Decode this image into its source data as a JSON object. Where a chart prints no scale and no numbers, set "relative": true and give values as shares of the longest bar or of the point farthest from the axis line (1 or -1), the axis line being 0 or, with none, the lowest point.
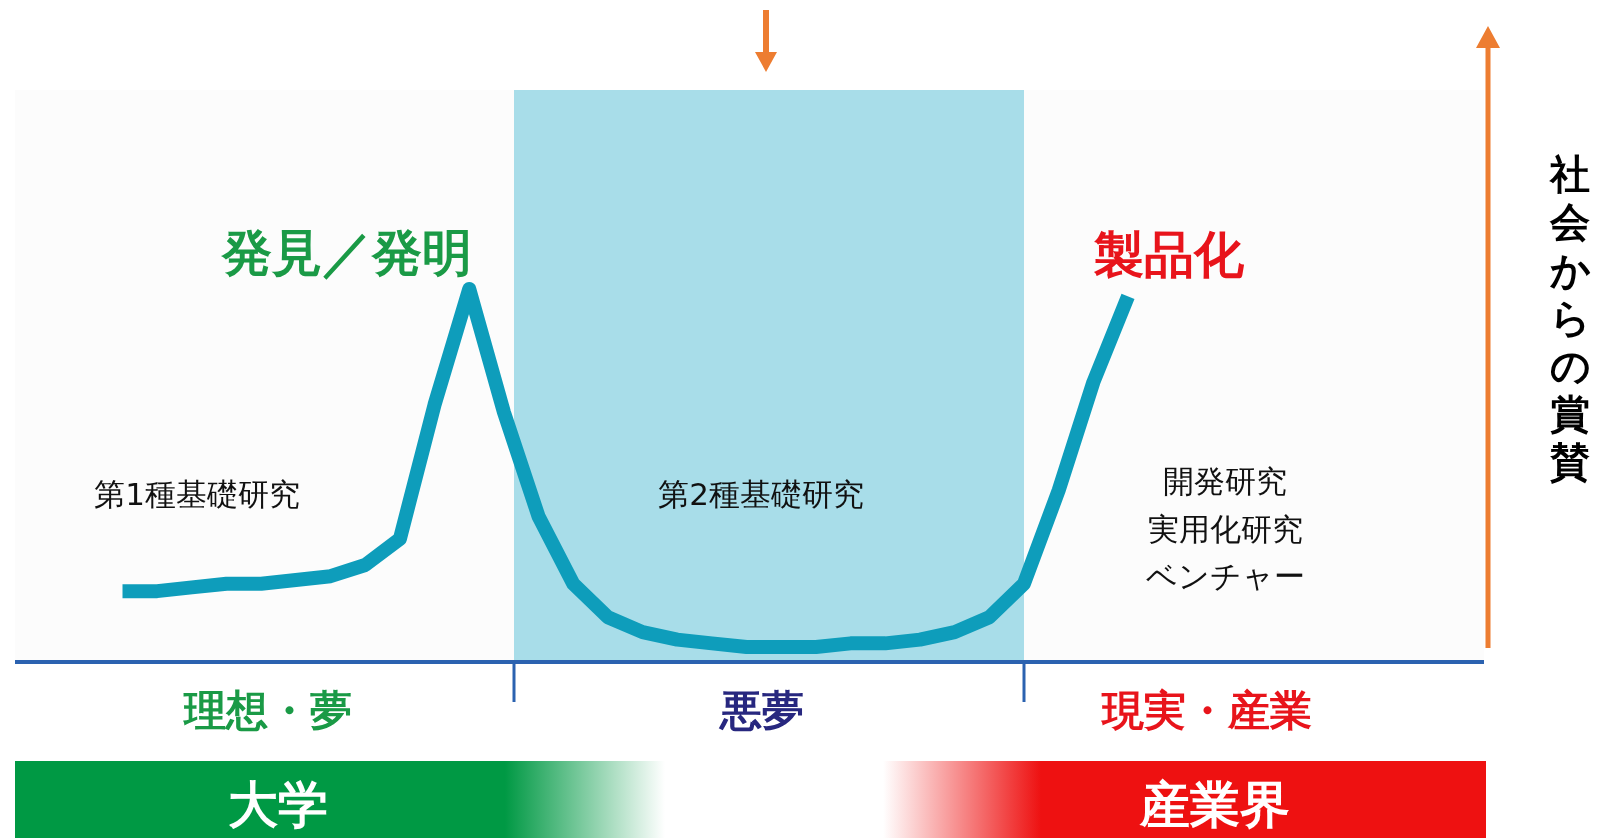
{
  "chart_data": {
    "type": "line",
    "relative": true,
    "categories": [
      null,
      null,
      null,
      null,
      null,
      null,
      null,
      null,
      null,
      null,
      null,
      null,
      null,
      null,
      null,
      null,
      null,
      null,
      null,
      null,
      null,
      null,
      null,
      null,
      null,
      null,
      null,
      null,
      null,
      null
    ],
    "series": [
      {
        "color": "#0e9dbb",
        "values": [
          0.19,
          0.19,
          0.2,
          0.21,
          0.21,
          0.22,
          0.23,
          0.26,
          0.33,
          0.69,
          1.0,
          0.67,
          0.39,
          0.21,
          0.12,
          0.08,
          0.06,
          0.05,
          0.04,
          0.04,
          0.04,
          0.05,
          0.05,
          0.06,
          0.08,
          0.12,
          0.21,
          0.46,
          0.75,
          0.98
        ]
      }
    ],
    "annotations": [
      "発見／発明",
      "製品化",
      "第1種基礎研究",
      "第2種基礎研究",
      "開発研究",
      "実用化研究",
      "ベンチャー",
      "理想・夢",
      "悪夢",
      "現実・産業",
      "大学",
      "産業界",
      "社会からの賞賛"
    ],
    "line_style": "solid"
  }
}
